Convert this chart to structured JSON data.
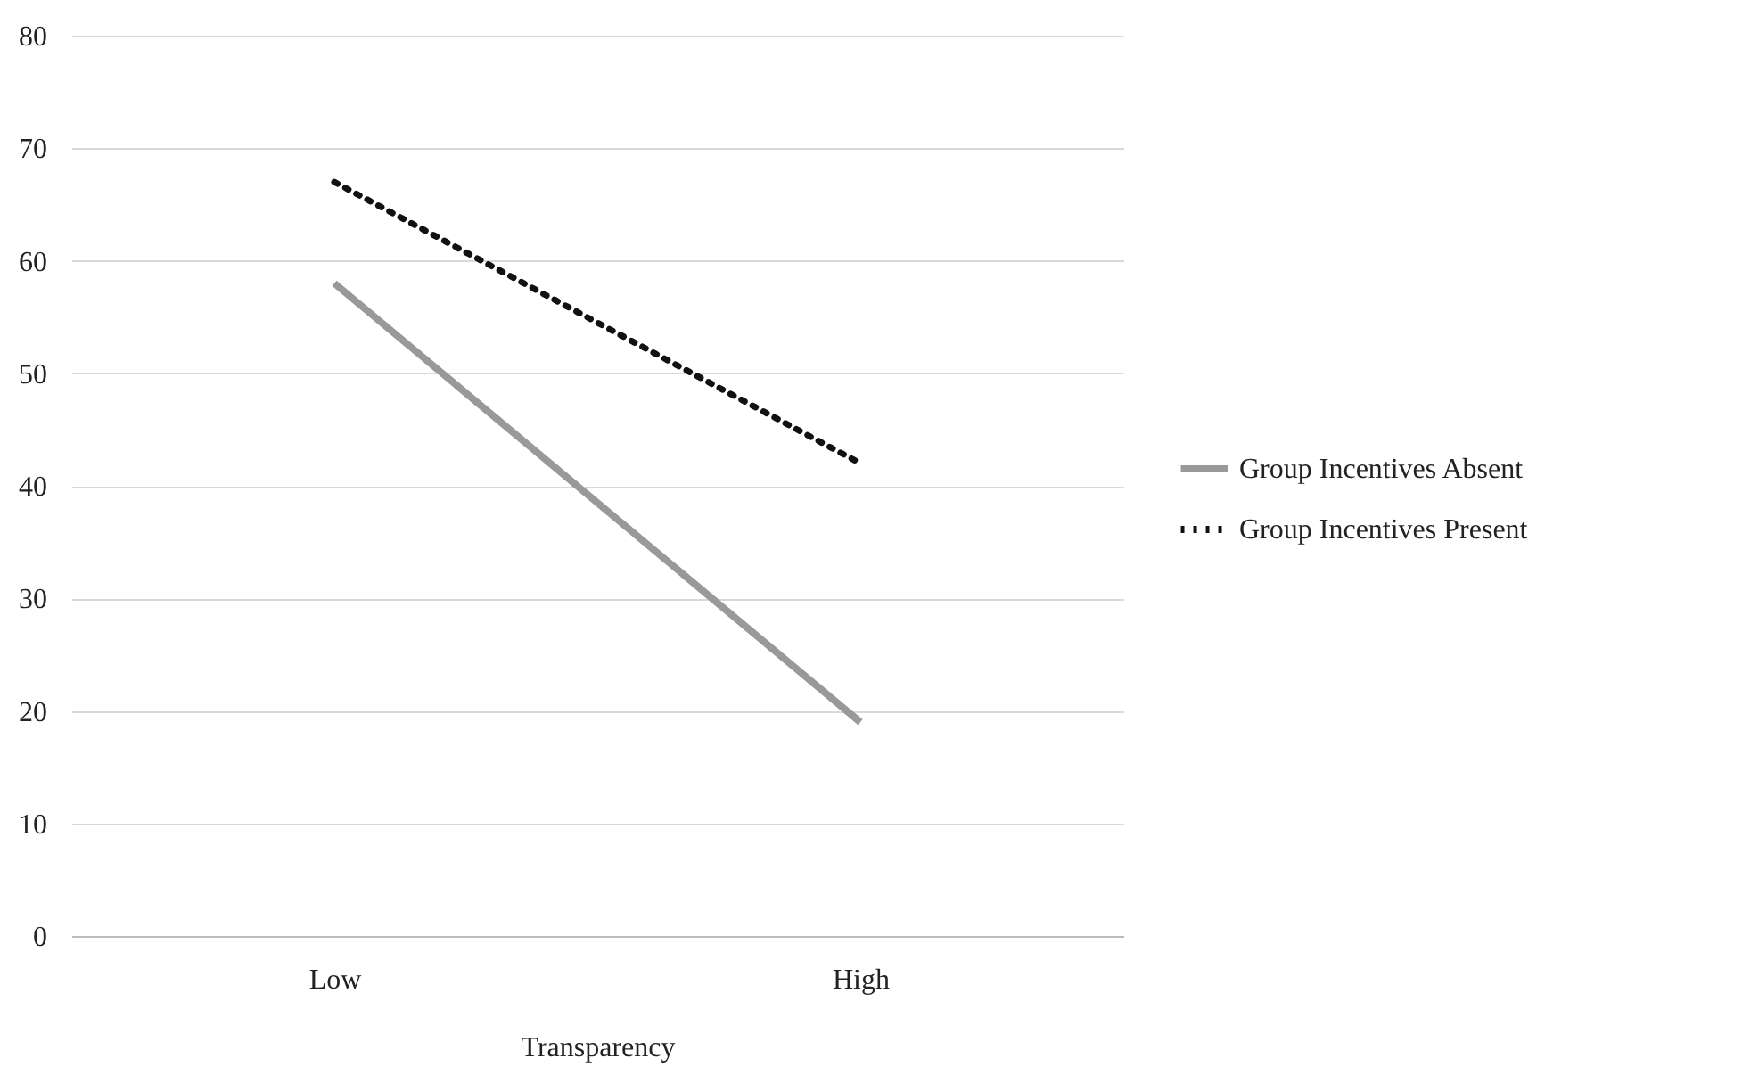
{
  "chart_data": {
    "type": "line",
    "xlabel": "Transparency",
    "categories": [
      "Low",
      "High"
    ],
    "series": [
      {
        "name": "Group Incentives Absent",
        "color": "#999999",
        "values": [
          58,
          19
        ],
        "line_style": "solid"
      },
      {
        "name": "Group Incentives Present",
        "color": "#111111",
        "values": [
          67,
          42
        ],
        "line_style": "dotted"
      }
    ],
    "ylim": [
      0,
      80
    ],
    "yticks": [
      0,
      10,
      20,
      30,
      40,
      50,
      60,
      70,
      80
    ],
    "grid": "y",
    "legend": "right",
    "marker": "none"
  }
}
